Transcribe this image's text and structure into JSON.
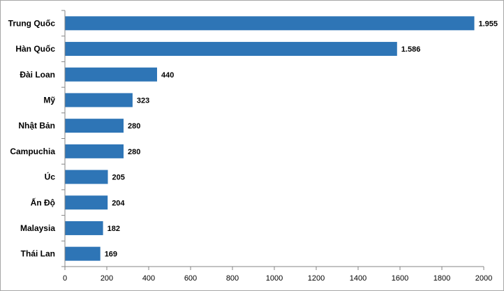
{
  "chart_data": {
    "type": "bar",
    "orientation": "horizontal",
    "categories": [
      "Trung Quốc",
      "Hàn Quốc",
      "Đài Loan",
      "Mỹ",
      "Nhật Bản",
      "Campuchia",
      "Úc",
      "Ấn Độ",
      "Malaysia",
      "Thái Lan"
    ],
    "values": [
      1955,
      1586,
      440,
      323,
      280,
      280,
      205,
      204,
      182,
      169
    ],
    "value_labels": [
      "1.955",
      "1.586",
      "440",
      "323",
      "280",
      "280",
      "205",
      "204",
      "182",
      "169"
    ],
    "xlim": [
      0,
      2000
    ],
    "x_ticks": [
      0,
      200,
      400,
      600,
      800,
      1000,
      1200,
      1400,
      1600,
      1800,
      2000
    ],
    "x_tick_labels": [
      "0",
      "200",
      "400",
      "600",
      "800",
      "1000",
      "1200",
      "1400",
      "1600",
      "1800",
      "2000"
    ],
    "title": "",
    "xlabel": "",
    "ylabel": "",
    "grid": false,
    "legend": "none",
    "bar_color": "#2e75b6"
  }
}
